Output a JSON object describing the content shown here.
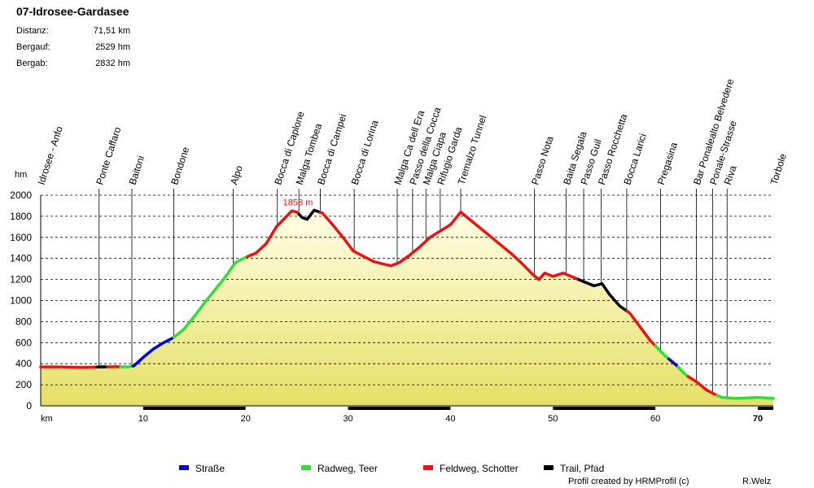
{
  "title": "07-Idrosee-Gardasee",
  "stats": {
    "distance_label": "Distanz:",
    "distance_value": "71,51 km",
    "ascent_label": "Bergauf:",
    "ascent_value": "2529 hm",
    "descent_label": "Bergab:",
    "descent_value": "2832 hm"
  },
  "footer": {
    "credit": "Profil created by HRMProfil (c)",
    "author": "R.Welz"
  },
  "colors": {
    "road": "#0000cc",
    "cycle": "#33dd33",
    "gravel": "#ee1111",
    "trail": "#000000",
    "fill_top": "#ffffe6",
    "fill_bottom": "#e6e066"
  },
  "chart_data": {
    "type": "area",
    "title": "07-Idrosee-Gardasee",
    "xlabel": "km",
    "ylabel": "hm",
    "xlim": [
      0,
      71.51
    ],
    "ylim": [
      0,
      2000
    ],
    "x_ticks": [
      10,
      20,
      30,
      40,
      50,
      60,
      70
    ],
    "y_ticks": [
      0,
      200,
      400,
      600,
      800,
      1000,
      1200,
      1400,
      1600,
      1800,
      2000
    ],
    "max_label": "1858 m",
    "max_point": {
      "x": 26.7,
      "y": 1858
    },
    "profile": [
      [
        0,
        370
      ],
      [
        2,
        370
      ],
      [
        4,
        365
      ],
      [
        6,
        370
      ],
      [
        7.5,
        372
      ],
      [
        8.6,
        370
      ],
      [
        9.1,
        380
      ],
      [
        10,
        460
      ],
      [
        11,
        540
      ],
      [
        12,
        600
      ],
      [
        13,
        650
      ],
      [
        14,
        730
      ],
      [
        15,
        850
      ],
      [
        16,
        980
      ],
      [
        17,
        1100
      ],
      [
        18,
        1220
      ],
      [
        19,
        1360
      ],
      [
        20,
        1410
      ],
      [
        21,
        1450
      ],
      [
        22,
        1540
      ],
      [
        23,
        1700
      ],
      [
        24,
        1800
      ],
      [
        24.5,
        1850
      ],
      [
        25,
        1840
      ],
      [
        25.5,
        1790
      ],
      [
        26,
        1770
      ],
      [
        26.7,
        1858
      ],
      [
        27.5,
        1830
      ],
      [
        28.5,
        1720
      ],
      [
        29.5,
        1600
      ],
      [
        30.5,
        1470
      ],
      [
        31.5,
        1420
      ],
      [
        32.5,
        1370
      ],
      [
        33.5,
        1345
      ],
      [
        34.2,
        1330
      ],
      [
        35,
        1360
      ],
      [
        36,
        1430
      ],
      [
        37,
        1510
      ],
      [
        38,
        1600
      ],
      [
        39,
        1660
      ],
      [
        40,
        1720
      ],
      [
        41,
        1840
      ],
      [
        42,
        1760
      ],
      [
        43,
        1680
      ],
      [
        44,
        1600
      ],
      [
        45,
        1520
      ],
      [
        46,
        1440
      ],
      [
        47,
        1350
      ],
      [
        48,
        1250
      ],
      [
        48.6,
        1200
      ],
      [
        49.2,
        1260
      ],
      [
        50,
        1230
      ],
      [
        51,
        1260
      ],
      [
        52,
        1220
      ],
      [
        53,
        1180
      ],
      [
        54,
        1140
      ],
      [
        54.8,
        1160
      ],
      [
        55.5,
        1060
      ],
      [
        56.5,
        950
      ],
      [
        57.5,
        880
      ],
      [
        58.5,
        750
      ],
      [
        59.5,
        620
      ],
      [
        60.3,
        540
      ],
      [
        61,
        470
      ],
      [
        62,
        390
      ],
      [
        63,
        290
      ],
      [
        64,
        230
      ],
      [
        65,
        150
      ],
      [
        65.8,
        110
      ],
      [
        66.5,
        80
      ],
      [
        68,
        70
      ],
      [
        70,
        80
      ],
      [
        71.51,
        70
      ]
    ],
    "segments": [
      {
        "type": "gravel",
        "from": 0,
        "to": 7.8
      },
      {
        "type": "trail",
        "from": 5.5,
        "to": 6.3
      },
      {
        "type": "cycle",
        "from": 7.8,
        "to": 9.0
      },
      {
        "type": "road",
        "from": 9.0,
        "to": 13.0
      },
      {
        "type": "cycle",
        "from": 13.0,
        "to": 20.2
      },
      {
        "type": "gravel",
        "from": 20.2,
        "to": 25.2
      },
      {
        "type": "trail",
        "from": 25.2,
        "to": 27.3
      },
      {
        "type": "gravel",
        "from": 27.3,
        "to": 52.5
      },
      {
        "type": "trail",
        "from": 52.5,
        "to": 57.2
      },
      {
        "type": "gravel",
        "from": 57.2,
        "to": 60.0
      },
      {
        "type": "cycle",
        "from": 60.0,
        "to": 61.3
      },
      {
        "type": "road",
        "from": 61.3,
        "to": 62.2
      },
      {
        "type": "cycle",
        "from": 62.2,
        "to": 63.2
      },
      {
        "type": "gravel",
        "from": 63.2,
        "to": 66.0
      },
      {
        "type": "cycle",
        "from": 66.0,
        "to": 71.51
      }
    ],
    "waypoints": [
      {
        "name": "Idrosee - Anfo",
        "km": 0
      },
      {
        "name": "Ponte Caffaro",
        "km": 5.7
      },
      {
        "name": "Baitoni",
        "km": 8.9
      },
      {
        "name": "Bondone",
        "km": 13.0
      },
      {
        "name": "Alpo",
        "km": 18.8
      },
      {
        "name": "Bocca di Caplone",
        "km": 23.1
      },
      {
        "name": "Malga Tombea",
        "km": 25.2
      },
      {
        "name": "Bocca di Campei",
        "km": 27.3
      },
      {
        "name": "Bocca di Lorina",
        "km": 30.6
      },
      {
        "name": "Malga Ca dell Era",
        "km": 34.8
      },
      {
        "name": "Passo della Cocca",
        "km": 36.3
      },
      {
        "name": "Malga Ciapa",
        "km": 37.6
      },
      {
        "name": "Rifugio Garda",
        "km": 39.0
      },
      {
        "name": "Tremalzo Tunnel",
        "km": 41.0
      },
      {
        "name": "Passo Nota",
        "km": 48.2
      },
      {
        "name": "Baita Segala",
        "km": 51.3
      },
      {
        "name": "Passo Guil",
        "km": 53.0
      },
      {
        "name": "Passo Rocchetta",
        "km": 54.7
      },
      {
        "name": "Bocca Larici",
        "km": 57.2
      },
      {
        "name": "Pregasina",
        "km": 60.5
      },
      {
        "name": "Bar Ponalealto Belvedere",
        "km": 64.0
      },
      {
        "name": "Ponale-Strasse",
        "km": 65.6
      },
      {
        "name": "Riva",
        "km": 67.0
      },
      {
        "name": "Torbole",
        "km": 71.51
      }
    ],
    "x_bar_ranges": [
      [
        10,
        20
      ],
      [
        30,
        40
      ],
      [
        50,
        60
      ],
      [
        70,
        71.51
      ]
    ],
    "legend": [
      {
        "key": "road",
        "label": "Straße"
      },
      {
        "key": "cycle",
        "label": "Radweg, Teer"
      },
      {
        "key": "gravel",
        "label": "Feldweg, Schotter"
      },
      {
        "key": "trail",
        "label": "Trail, Pfad"
      }
    ]
  }
}
